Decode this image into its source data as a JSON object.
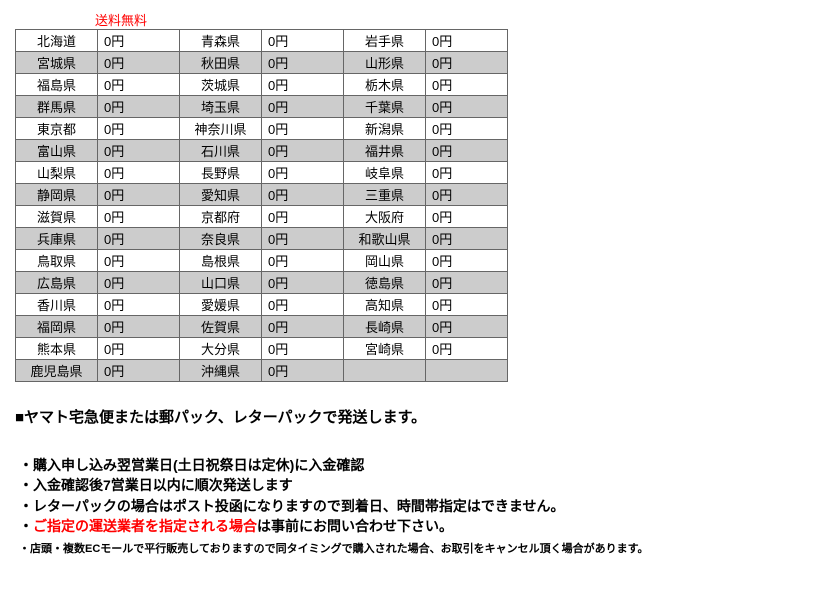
{
  "top_label": "送料無料",
  "table": {
    "cell_bg_normal": "#ffffff",
    "cell_bg_shaded": "#cccccc",
    "border_color": "#666666",
    "rows": [
      {
        "shade": false,
        "cells": [
          "北海道",
          "0円",
          "青森県",
          "0円",
          "岩手県",
          "0円"
        ]
      },
      {
        "shade": true,
        "cells": [
          "宮城県",
          "0円",
          "秋田県",
          "0円",
          "山形県",
          "0円"
        ]
      },
      {
        "shade": false,
        "cells": [
          "福島県",
          "0円",
          "茨城県",
          "0円",
          "栃木県",
          "0円"
        ]
      },
      {
        "shade": true,
        "cells": [
          "群馬県",
          "0円",
          "埼玉県",
          "0円",
          "千葉県",
          "0円"
        ]
      },
      {
        "shade": false,
        "cells": [
          "東京都",
          "0円",
          "神奈川県",
          "0円",
          "新潟県",
          "0円"
        ]
      },
      {
        "shade": true,
        "cells": [
          "富山県",
          "0円",
          "石川県",
          "0円",
          "福井県",
          "0円"
        ]
      },
      {
        "shade": false,
        "cells": [
          "山梨県",
          "0円",
          "長野県",
          "0円",
          "岐阜県",
          "0円"
        ]
      },
      {
        "shade": true,
        "cells": [
          "静岡県",
          "0円",
          "愛知県",
          "0円",
          "三重県",
          "0円"
        ]
      },
      {
        "shade": false,
        "cells": [
          "滋賀県",
          "0円",
          "京都府",
          "0円",
          "大阪府",
          "0円"
        ]
      },
      {
        "shade": true,
        "cells": [
          "兵庫県",
          "0円",
          "奈良県",
          "0円",
          "和歌山県",
          "0円"
        ]
      },
      {
        "shade": false,
        "cells": [
          "鳥取県",
          "0円",
          "島根県",
          "0円",
          "岡山県",
          "0円"
        ]
      },
      {
        "shade": true,
        "cells": [
          "広島県",
          "0円",
          "山口県",
          "0円",
          "徳島県",
          "0円"
        ]
      },
      {
        "shade": false,
        "cells": [
          "香川県",
          "0円",
          "愛媛県",
          "0円",
          "高知県",
          "0円"
        ]
      },
      {
        "shade": true,
        "cells": [
          "福岡県",
          "0円",
          "佐賀県",
          "0円",
          "長崎県",
          "0円"
        ]
      },
      {
        "shade": false,
        "cells": [
          "熊本県",
          "0円",
          "大分県",
          "0円",
          "宮崎県",
          "0円"
        ]
      },
      {
        "shade": true,
        "cells": [
          "鹿児島県",
          "0円",
          "沖縄県",
          "0円",
          "",
          ""
        ]
      }
    ]
  },
  "heading": "■ヤマト宅急便または郵パック、レターパックで発送します。",
  "notes": [
    {
      "text": "購入申し込み翌営業日(土日祝祭日は定休)に入金確認",
      "small": false
    },
    {
      "text": "入金確認後7営業日以内に順次発送します",
      "small": false
    },
    {
      "text": "レターパックの場合はポスト投函になりますので到着日、時間帯指定はできません。",
      "small": false
    }
  ],
  "note_mixed": {
    "red": "ご指定の運送業者を指定される場合",
    "rest": "は事前にお問い合わせ下さい。"
  },
  "note_small": "店頭・複数ECモールで平行販売しておりますので同タイミングで購入された場合、お取引をキャンセル頂く場合があります。"
}
